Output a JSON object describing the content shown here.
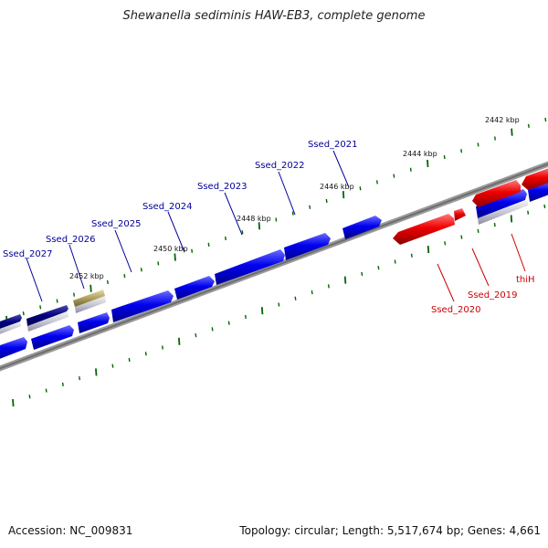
{
  "title": "Shewanella sediminis HAW-EB3, complete genome",
  "footer": {
    "accession_label": "Accession:",
    "accession": "NC_009831",
    "topology_label": "Topology:",
    "topology": "circular",
    "length_label": "Length:",
    "length": "5,517,674 bp",
    "genes_label": "Genes:",
    "genes": "4,661"
  },
  "colors": {
    "forward_gene": "#0000ee",
    "forward_gene_dark": "#000080",
    "reverse_gene": "#ee0000",
    "pseudo_gene": "#b0a060",
    "forward_label": "#000099",
    "reverse_label": "#cc0000",
    "backbone": "#7a7a7a",
    "tick": "#006600"
  },
  "kbp_ticks": [
    "2442 kbp",
    "2444 kbp",
    "2446 kbp",
    "2448 kbp",
    "2450 kbp",
    "2452 kbp"
  ],
  "gene_labels": {
    "forward": [
      "Ssed_2021",
      "Ssed_2022",
      "Ssed_2023",
      "Ssed_2024",
      "Ssed_2025",
      "Ssed_2026",
      "Ssed_2027"
    ],
    "reverse": [
      "thiH",
      "Ssed_2019",
      "Ssed_2020"
    ]
  }
}
